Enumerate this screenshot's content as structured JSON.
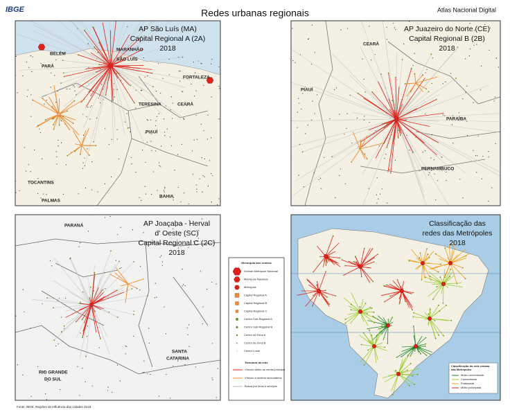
{
  "header": {
    "logo": "IBGE",
    "title": "Redes urbanas regionais",
    "atlas": "Atlas Nacional Digital"
  },
  "panels": [
    {
      "title": [
        "AP São Luís (MA)",
        "Capital Regional A (2A)",
        "2018"
      ],
      "places": [
        "BELÉM",
        "PARÁ",
        "MARANHÃO",
        "SÃO LUÍS",
        "FORTALEZA",
        "TERESINA",
        "CEARÁ",
        "PIAUÍ",
        "TOCANTINS",
        "PALMAS",
        "BAHIA"
      ]
    },
    {
      "title": [
        "AP Juazeiro do Norte (CE)",
        "Capital Regional B (2B)",
        "2018"
      ],
      "places": [
        "CEARÁ",
        "PIAUÍ",
        "PARAÍBA",
        "PERNAMBUCO"
      ]
    },
    {
      "title": [
        "AP Joaçaba - Herval",
        "d' Oeste (SC)",
        "Capital Regional C (2C)",
        "2018"
      ],
      "places": [
        "PARANÁ",
        "SANTA",
        "CATARINA",
        "RIO GRANDE",
        "DO SUL"
      ]
    },
    {
      "title": [
        "Classificação das",
        "redes das Metrópoles",
        "2018"
      ],
      "places": []
    }
  ],
  "legend": {
    "hierarchy_title": "Hierarquia dos centros",
    "hierarchy": [
      "Grande Metrópole Nacional",
      "Metrópole Nacional",
      "Metrópole",
      "Capital Regional A",
      "Capital Regional B",
      "Capital Regional C",
      "Centro Sub-Regional A",
      "Centro Sub-Regional B",
      "Centro de Zona A",
      "Centro de Zona B",
      "Centro Local"
    ],
    "network_title": "Estrutura da rede",
    "network": [
      "Vínculo direto ao centro principal",
      "Vínculo a centros secundários",
      "Busca por bens e serviços"
    ]
  },
  "inset_legend": {
    "title": [
      "Classificação da rede urbana",
      "das Metrópoles"
    ],
    "items": [
      "Muito concentrada",
      "Concentrada",
      "Polarizada",
      "Muito polarizada"
    ]
  },
  "source": "Fonte: IBGE. Regiões de Influência das cidades 2018."
}
